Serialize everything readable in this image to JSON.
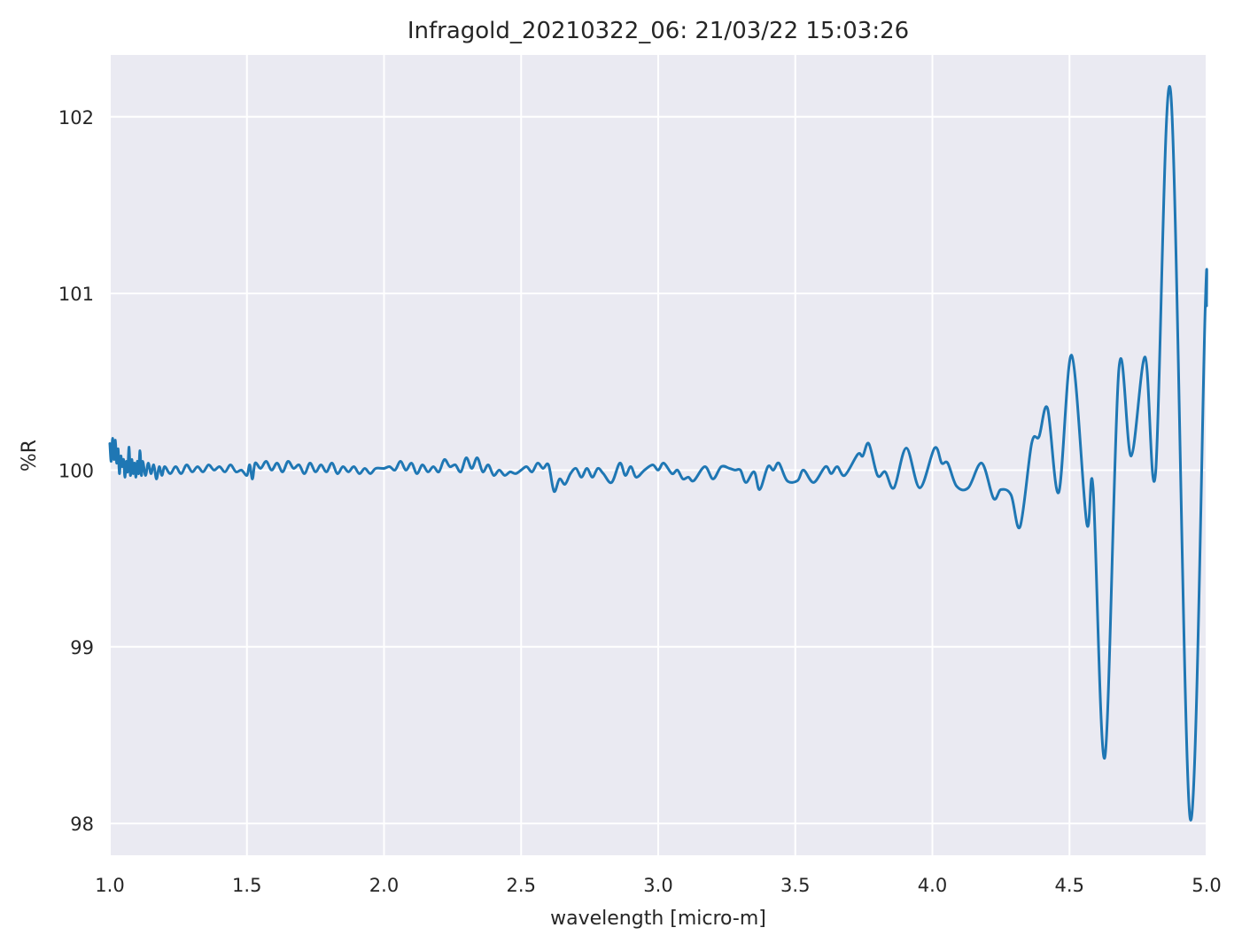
{
  "chart_data": {
    "type": "line",
    "title": "Infragold_20210322_06:  21/03/22 15:03:26",
    "xlabel": "wavelength [micro-m]",
    "ylabel": "%R",
    "xlim": [
      1.0,
      5.0
    ],
    "ylim": [
      97.82,
      102.35
    ],
    "xticks": [
      1.0,
      1.5,
      2.0,
      2.5,
      3.0,
      3.5,
      4.0,
      4.5,
      5.0
    ],
    "xtick_labels": [
      "1.0",
      "1.5",
      "2.0",
      "2.5",
      "3.0",
      "3.5",
      "4.0",
      "4.5",
      "5.0"
    ],
    "yticks": [
      98,
      99,
      100,
      101,
      102
    ],
    "ytick_labels": [
      "98",
      "99",
      "100",
      "101",
      "102"
    ],
    "grid": true,
    "colors": {
      "background": "#eaeaf2",
      "grid": "#ffffff",
      "line": "#1f77b4"
    },
    "series": [
      {
        "x": [
          1.0,
          1.005,
          1.01,
          1.015,
          1.02,
          1.025,
          1.03,
          1.035,
          1.04,
          1.045,
          1.05,
          1.055,
          1.06,
          1.065,
          1.07,
          1.075,
          1.08,
          1.085,
          1.09,
          1.095,
          1.1,
          1.105,
          1.11,
          1.115,
          1.12,
          1.13,
          1.14,
          1.15,
          1.16,
          1.17,
          1.18,
          1.19,
          1.2,
          1.22,
          1.24,
          1.26,
          1.28,
          1.3,
          1.32,
          1.34,
          1.36,
          1.38,
          1.4,
          1.42,
          1.44,
          1.46,
          1.48,
          1.5,
          1.51,
          1.52,
          1.53,
          1.55,
          1.57,
          1.59,
          1.61,
          1.63,
          1.65,
          1.67,
          1.69,
          1.71,
          1.73,
          1.75,
          1.77,
          1.79,
          1.81,
          1.83,
          1.85,
          1.87,
          1.89,
          1.91,
          1.93,
          1.95,
          1.97,
          2.0,
          2.02,
          2.04,
          2.06,
          2.08,
          2.1,
          2.12,
          2.14,
          2.16,
          2.18,
          2.2,
          2.22,
          2.24,
          2.26,
          2.28,
          2.3,
          2.32,
          2.34,
          2.36,
          2.38,
          2.4,
          2.42,
          2.44,
          2.46,
          2.48,
          2.5,
          2.52,
          2.54,
          2.56,
          2.58,
          2.6,
          2.62,
          2.64,
          2.66,
          2.68,
          2.7,
          2.72,
          2.74,
          2.76,
          2.78,
          2.8,
          2.83,
          2.86,
          2.88,
          2.9,
          2.92,
          2.95,
          2.98,
          3.0,
          3.02,
          3.05,
          3.07,
          3.09,
          3.11,
          3.13,
          3.17,
          3.2,
          3.23,
          3.26,
          3.28,
          3.3,
          3.32,
          3.35,
          3.37,
          3.4,
          3.42,
          3.44,
          3.47,
          3.508,
          3.53,
          3.567,
          3.61,
          3.631,
          3.653,
          3.68,
          3.728,
          3.746,
          3.768,
          3.8,
          3.828,
          3.86,
          3.905,
          3.954,
          4.008,
          4.034,
          4.056,
          4.088,
          4.131,
          4.18,
          4.223,
          4.25,
          4.287,
          4.32,
          4.362,
          4.389,
          4.42,
          4.461,
          4.508,
          4.563,
          4.586,
          4.629,
          4.68,
          4.725,
          4.776,
          4.814,
          4.869,
          4.94,
          4.995,
          5.0
        ],
        "y": [
          100.15,
          100.05,
          100.18,
          100.06,
          100.17,
          100.04,
          100.12,
          99.98,
          100.08,
          100.02,
          100.06,
          99.96,
          100.05,
          99.99,
          100.13,
          99.97,
          100.06,
          99.98,
          100.04,
          99.96,
          100.05,
          99.98,
          100.11,
          99.97,
          100.05,
          99.97,
          100.04,
          99.98,
          100.03,
          99.95,
          100.02,
          99.97,
          100.02,
          99.98,
          100.02,
          99.98,
          100.03,
          99.99,
          100.02,
          99.99,
          100.03,
          100.0,
          100.02,
          99.99,
          100.03,
          99.99,
          100.0,
          99.97,
          100.03,
          99.95,
          100.04,
          100.01,
          100.05,
          100.0,
          100.04,
          99.99,
          100.05,
          100.01,
          100.03,
          99.98,
          100.04,
          99.99,
          100.03,
          99.99,
          100.04,
          99.98,
          100.02,
          99.99,
          100.02,
          99.98,
          100.01,
          99.98,
          100.01,
          100.01,
          100.02,
          100.0,
          100.05,
          100.0,
          100.04,
          99.98,
          100.03,
          99.99,
          100.02,
          99.99,
          100.06,
          100.02,
          100.03,
          99.99,
          100.07,
          100.01,
          100.07,
          99.99,
          100.03,
          99.97,
          100.0,
          99.97,
          99.99,
          99.98,
          100.0,
          100.02,
          99.99,
          100.04,
          100.01,
          100.03,
          99.88,
          99.95,
          99.92,
          99.98,
          100.01,
          99.96,
          100.01,
          99.96,
          100.01,
          99.98,
          99.93,
          100.04,
          99.97,
          100.02,
          99.96,
          100.0,
          100.03,
          100.0,
          100.04,
          99.98,
          100.0,
          99.95,
          99.96,
          99.94,
          100.02,
          99.95,
          100.02,
          100.01,
          100.0,
          100.0,
          99.93,
          99.99,
          99.89,
          100.02,
          100.0,
          100.04,
          99.94,
          99.94,
          100.0,
          99.93,
          100.02,
          99.98,
          100.02,
          99.97,
          100.09,
          100.08,
          100.15,
          99.97,
          99.99,
          99.9,
          100.125,
          99.9,
          100.125,
          100.04,
          100.04,
          99.91,
          99.9,
          100.04,
          99.84,
          99.89,
          99.86,
          99.68,
          100.15,
          100.19,
          100.35,
          99.875,
          100.65,
          99.7,
          99.9,
          98.375,
          100.57,
          100.08,
          100.64,
          99.98,
          102.14,
          98.03,
          100.92,
          100.93
        ]
      }
    ]
  }
}
